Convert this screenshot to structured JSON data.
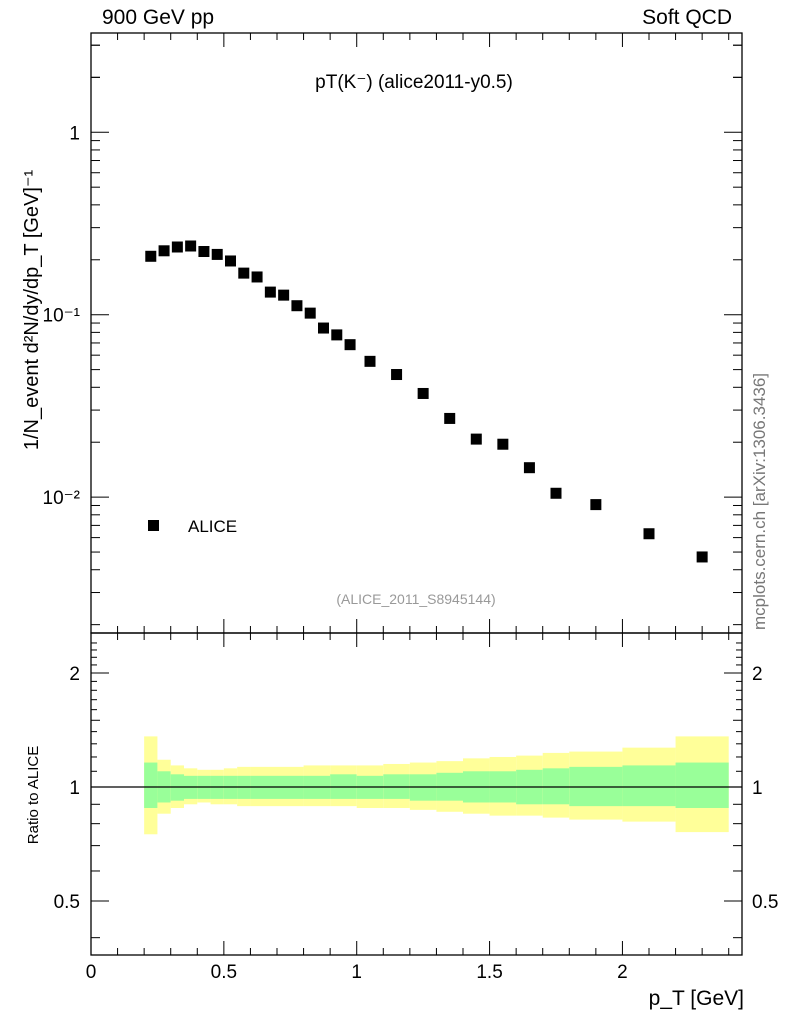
{
  "header": {
    "left": "900 GeV pp",
    "right": "Soft QCD"
  },
  "watermark": "mcplots.cern.ch [arXiv:1306.3436]",
  "chart_data": [
    {
      "type": "scatter",
      "title": "pT(K⁻) (alice2011-y0.5)",
      "ylabel": "1/N_event d²N/dy/dp_T [GeV]⁻¹",
      "xlabel": "p_T [GeV]",
      "yscale": "log",
      "xlim": [
        0,
        2.45
      ],
      "ylim": [
        0.0018,
        3.5
      ],
      "ytick_labels": [
        "10⁻²",
        "10⁻¹",
        "1"
      ],
      "legend": "bottom-left",
      "analysis_label": "(ALICE_2011_S8945144)",
      "series": [
        {
          "name": "ALICE",
          "marker": "square",
          "color": "#000000",
          "x": [
            0.225,
            0.275,
            0.325,
            0.375,
            0.425,
            0.475,
            0.525,
            0.575,
            0.625,
            0.675,
            0.725,
            0.775,
            0.825,
            0.875,
            0.925,
            0.975,
            1.05,
            1.15,
            1.25,
            1.35,
            1.45,
            1.55,
            1.65,
            1.75,
            1.9,
            2.1,
            2.3
          ],
          "y": [
            0.209,
            0.224,
            0.235,
            0.238,
            0.222,
            0.214,
            0.197,
            0.169,
            0.161,
            0.133,
            0.128,
            0.112,
            0.102,
            0.0845,
            0.0775,
            0.0685,
            0.0555,
            0.047,
            0.037,
            0.027,
            0.0208,
            0.0195,
            0.0145,
            0.0105,
            0.0091,
            0.0063,
            0.0047
          ]
        }
      ]
    },
    {
      "type": "area",
      "ylabel": "Ratio to ALICE",
      "xlabel": "p_T [GeV]",
      "xlim": [
        0,
        2.45
      ],
      "ylim": [
        0.36,
        2.55
      ],
      "yscale": "log",
      "xtick_labels": [
        "0",
        "0.5",
        "1",
        "1.5",
        "2"
      ],
      "ytick_labels": [
        "0.5",
        "1",
        "2"
      ],
      "reference_line": 1,
      "bands": {
        "colors": {
          "stat": "#99ff99",
          "total": "#ffff99"
        },
        "bins": [
          [
            0.2,
            0.25,
            0.88,
            1.16,
            0.75,
            1.36
          ],
          [
            0.25,
            0.3,
            0.91,
            1.1,
            0.85,
            1.18
          ],
          [
            0.3,
            0.35,
            0.92,
            1.08,
            0.88,
            1.14
          ],
          [
            0.35,
            0.4,
            0.93,
            1.07,
            0.9,
            1.12
          ],
          [
            0.4,
            0.45,
            0.93,
            1.07,
            0.91,
            1.11
          ],
          [
            0.45,
            0.5,
            0.93,
            1.07,
            0.9,
            1.11
          ],
          [
            0.5,
            0.55,
            0.93,
            1.07,
            0.9,
            1.12
          ],
          [
            0.55,
            0.6,
            0.93,
            1.07,
            0.89,
            1.13
          ],
          [
            0.6,
            0.7,
            0.93,
            1.07,
            0.89,
            1.13
          ],
          [
            0.7,
            0.8,
            0.93,
            1.07,
            0.89,
            1.13
          ],
          [
            0.8,
            0.9,
            0.93,
            1.07,
            0.89,
            1.14
          ],
          [
            0.9,
            1.0,
            0.93,
            1.08,
            0.89,
            1.14
          ],
          [
            1.0,
            1.1,
            0.93,
            1.07,
            0.88,
            1.14
          ],
          [
            1.1,
            1.2,
            0.93,
            1.08,
            0.88,
            1.15
          ],
          [
            1.2,
            1.3,
            0.92,
            1.08,
            0.87,
            1.16
          ],
          [
            1.3,
            1.4,
            0.92,
            1.09,
            0.86,
            1.17
          ],
          [
            1.4,
            1.5,
            0.91,
            1.1,
            0.85,
            1.19
          ],
          [
            1.5,
            1.6,
            0.91,
            1.1,
            0.84,
            1.2
          ],
          [
            1.6,
            1.7,
            0.9,
            1.11,
            0.84,
            1.21
          ],
          [
            1.7,
            1.8,
            0.9,
            1.12,
            0.83,
            1.23
          ],
          [
            1.8,
            2.0,
            0.89,
            1.13,
            0.82,
            1.24
          ],
          [
            2.0,
            2.2,
            0.89,
            1.14,
            0.81,
            1.27
          ],
          [
            2.2,
            2.4,
            0.88,
            1.16,
            0.76,
            1.36
          ]
        ]
      }
    }
  ]
}
